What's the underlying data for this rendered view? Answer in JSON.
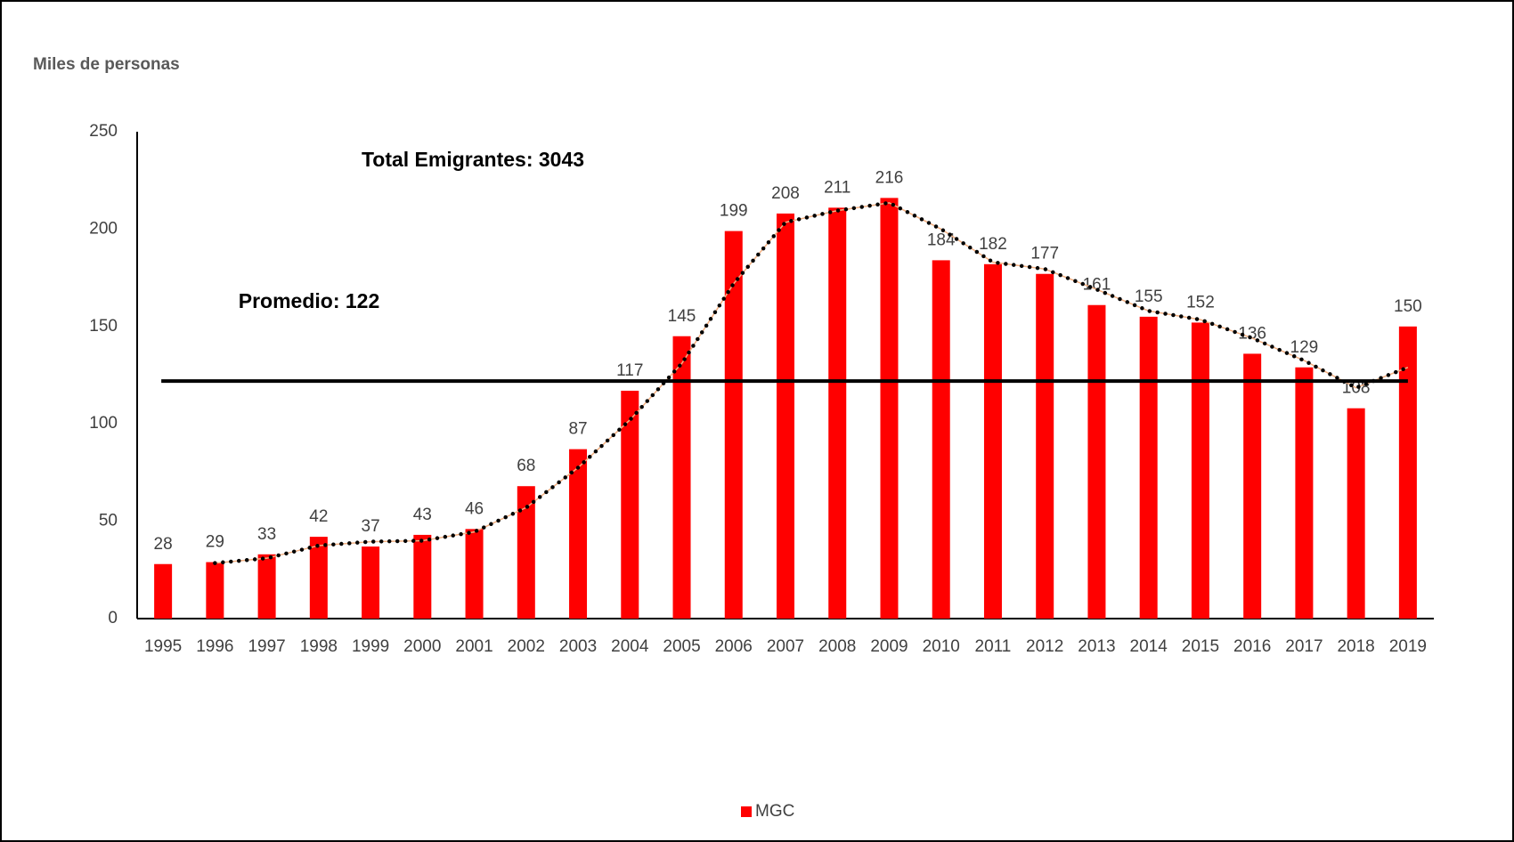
{
  "chart_data": {
    "type": "bar",
    "y_axis_label": "Miles de personas",
    "annotations": [
      "Total Emigrantes: 3043",
      "Promedio: 122"
    ],
    "categories": [
      "1995",
      "1996",
      "1997",
      "1998",
      "1999",
      "2000",
      "2001",
      "2002",
      "2003",
      "2004",
      "2005",
      "2006",
      "2007",
      "2008",
      "2009",
      "2010",
      "2011",
      "2012",
      "2013",
      "2014",
      "2015",
      "2016",
      "2017",
      "2018",
      "2019"
    ],
    "series": [
      {
        "name": "MGC",
        "color": "#ff0000",
        "values": [
          28,
          29,
          33,
          42,
          37,
          43,
          46,
          68,
          87,
          117,
          145,
          199,
          208,
          211,
          216,
          184,
          182,
          177,
          161,
          155,
          152,
          136,
          129,
          108,
          150
        ]
      }
    ],
    "average_line": {
      "value": 122,
      "color": "#000000"
    },
    "trend": {
      "color": "#000000",
      "values": [
        null,
        28.5,
        31,
        37.5,
        39.5,
        40,
        44.5,
        57,
        77.5,
        102,
        131,
        172,
        203.5,
        209.5,
        213.5,
        200,
        183,
        179.5,
        169,
        158,
        153.5,
        144,
        132.5,
        118.5,
        129
      ]
    },
    "ylim": [
      0,
      250
    ],
    "yticks": [
      0,
      50,
      100,
      150,
      200,
      250
    ],
    "grid": false,
    "legend": "bottom"
  }
}
